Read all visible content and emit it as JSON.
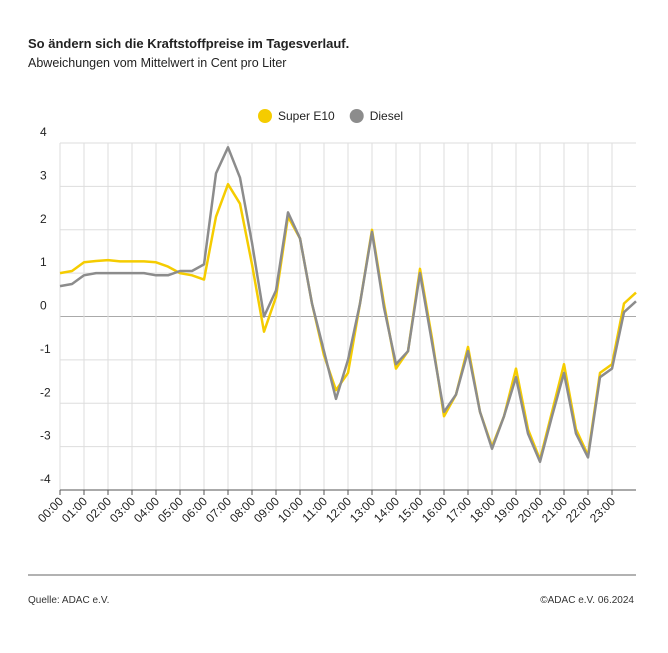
{
  "chart_data": {
    "type": "line",
    "title": "So ändern sich die Kraftstoffpreise im Tagesverlauf.",
    "subtitle": "Abweichungen vom Mittelwert in Cent pro Liter",
    "source": "Quelle: ADAC e.V.",
    "credit": "©ADAC e.V.  06.2024",
    "x": [
      0,
      0.5,
      1,
      1.5,
      2,
      2.5,
      3,
      3.5,
      4,
      4.5,
      5,
      5.5,
      6,
      6.5,
      7,
      7.5,
      8,
      8.5,
      9,
      9.5,
      10,
      10.5,
      11,
      11.5,
      12,
      12.5,
      13,
      13.5,
      14,
      14.5,
      15,
      15.5,
      16,
      16.5,
      17,
      17.5,
      18,
      18.5,
      19,
      19.5,
      20,
      20.5,
      21,
      21.5,
      22,
      22.5,
      23,
      23.5,
      24
    ],
    "series": [
      {
        "name": "Super E10",
        "color": "#f5cc00",
        "values": [
          1.0,
          1.05,
          1.25,
          1.28,
          1.3,
          1.27,
          1.27,
          1.27,
          1.25,
          1.15,
          1.0,
          0.95,
          0.85,
          2.3,
          3.05,
          2.6,
          1.2,
          -0.35,
          0.45,
          2.3,
          1.8,
          0.3,
          -0.9,
          -1.7,
          -1.3,
          0.3,
          2.0,
          0.3,
          -1.2,
          -0.8,
          1.1,
          -0.5,
          -2.3,
          -1.8,
          -0.7,
          -2.2,
          -3.0,
          -2.3,
          -1.2,
          -2.6,
          -3.3,
          -2.2,
          -1.1,
          -2.6,
          -3.2,
          -1.3,
          -1.1,
          0.3,
          0.55
        ]
      },
      {
        "name": "Diesel",
        "color": "#8c8c8c",
        "values": [
          0.7,
          0.75,
          0.95,
          1.0,
          1.0,
          1.0,
          1.0,
          1.0,
          0.95,
          0.95,
          1.05,
          1.05,
          1.2,
          3.3,
          3.9,
          3.2,
          1.7,
          0.0,
          0.6,
          2.4,
          1.8,
          0.3,
          -0.8,
          -1.9,
          -1.0,
          0.3,
          1.95,
          0.2,
          -1.1,
          -0.8,
          1.0,
          -0.6,
          -2.2,
          -1.8,
          -0.8,
          -2.2,
          -3.05,
          -2.3,
          -1.4,
          -2.7,
          -3.35,
          -2.3,
          -1.3,
          -2.7,
          -3.25,
          -1.4,
          -1.2,
          0.1,
          0.35
        ]
      }
    ],
    "xlim": [
      0,
      24
    ],
    "xticks": [
      {
        "value": 0,
        "label": "00:00"
      },
      {
        "value": 1,
        "label": "01:00"
      },
      {
        "value": 2,
        "label": "02:00"
      },
      {
        "value": 3,
        "label": "03:00"
      },
      {
        "value": 4,
        "label": "04:00"
      },
      {
        "value": 5,
        "label": "05:00"
      },
      {
        "value": 6,
        "label": "06:00"
      },
      {
        "value": 7,
        "label": "07:00"
      },
      {
        "value": 8,
        "label": "08:00"
      },
      {
        "value": 9,
        "label": "09:00"
      },
      {
        "value": 10,
        "label": "10:00"
      },
      {
        "value": 11,
        "label": "11:00"
      },
      {
        "value": 12,
        "label": "12:00"
      },
      {
        "value": 13,
        "label": "13:00"
      },
      {
        "value": 14,
        "label": "14:00"
      },
      {
        "value": 15,
        "label": "15:00"
      },
      {
        "value": 16,
        "label": "16:00"
      },
      {
        "value": 17,
        "label": "17:00"
      },
      {
        "value": 18,
        "label": "18:00"
      },
      {
        "value": 19,
        "label": "19:00"
      },
      {
        "value": 20,
        "label": "20:00"
      },
      {
        "value": 21,
        "label": "21:00"
      },
      {
        "value": 22,
        "label": "22:00"
      },
      {
        "value": 23,
        "label": "23:00"
      }
    ],
    "ylim": [
      -4,
      4
    ],
    "yticks": [
      4,
      3,
      2,
      1,
      0,
      -1,
      -2,
      -3,
      -4
    ],
    "grid": true
  }
}
